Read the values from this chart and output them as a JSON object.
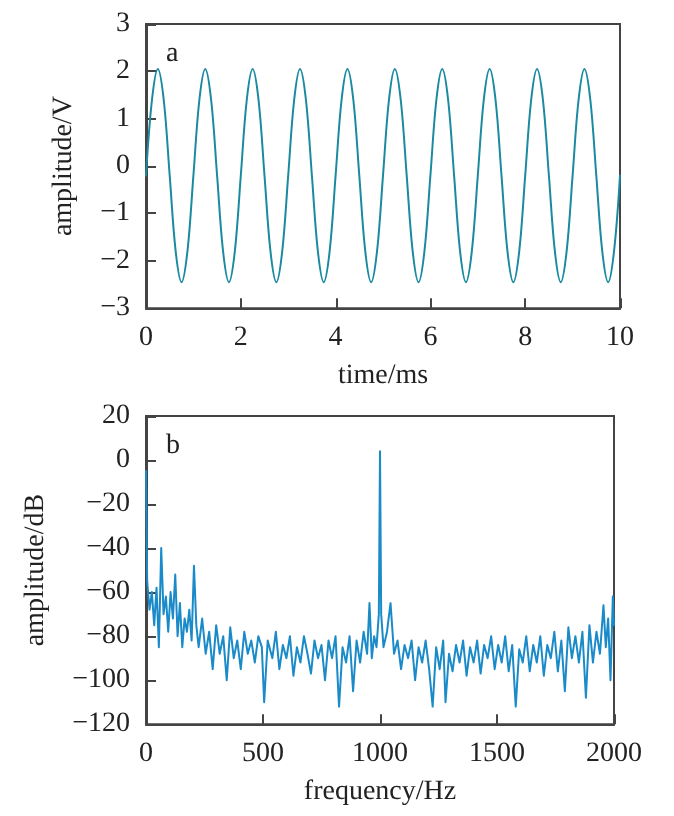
{
  "chart_data": [
    {
      "type": "line",
      "xlabel": "time/ms",
      "ylabel": "amplitude/V",
      "annotations": [
        "a"
      ],
      "color": "#1a8aa0",
      "xlim": [
        0,
        10
      ],
      "xticks": [
        0,
        2,
        4,
        6,
        8,
        10
      ],
      "ylim": [
        -3,
        3
      ],
      "yticks": [
        -3,
        -2,
        -1,
        0,
        1,
        2,
        3
      ],
      "grid": false,
      "x": [
        0,
        0.125,
        0.25,
        0.375,
        0.5,
        0.625,
        0.75,
        0.875,
        1,
        1.125,
        1.25,
        1.375,
        1.5,
        1.625,
        1.75,
        1.875,
        2,
        2.125,
        2.25,
        2.375,
        2.5,
        2.625,
        2.75,
        2.875,
        3,
        3.125,
        3.25,
        3.375,
        3.5,
        3.625,
        3.75,
        3.875,
        4,
        4.125,
        4.25,
        4.375,
        4.5,
        4.625,
        4.75,
        4.875,
        5,
        5.125,
        5.25,
        5.375,
        5.5,
        5.625,
        5.75,
        5.875,
        6,
        6.125,
        6.25,
        6.375,
        6.5,
        6.625,
        6.75,
        6.875,
        7,
        7.125,
        7.25,
        7.375,
        7.5,
        7.625,
        7.75,
        7.875,
        8,
        8.125,
        8.25,
        8.375,
        8.5,
        8.625,
        8.75,
        8.875,
        9,
        9.125,
        9.25,
        9.375,
        9.5,
        9.625,
        9.75,
        9.875,
        10
      ],
      "values": [
        -0.2,
        1.39,
        2.05,
        1.39,
        -0.2,
        -1.79,
        -2.45,
        -1.79,
        -0.2,
        1.39,
        2.05,
        1.39,
        -0.2,
        -1.79,
        -2.45,
        -1.79,
        -0.2,
        1.39,
        2.05,
        1.39,
        -0.2,
        -1.79,
        -2.45,
        -1.79,
        -0.2,
        1.39,
        2.05,
        1.39,
        -0.2,
        -1.79,
        -2.45,
        -1.79,
        -0.2,
        1.39,
        2.05,
        1.39,
        -0.2,
        -1.79,
        -2.45,
        -1.79,
        -0.2,
        1.39,
        2.05,
        1.39,
        -0.2,
        -1.79,
        -2.45,
        -1.79,
        -0.2,
        1.39,
        2.05,
        1.39,
        -0.2,
        -1.79,
        -2.45,
        -1.79,
        -0.2,
        1.39,
        2.05,
        1.39,
        -0.2,
        -1.79,
        -2.45,
        -1.79,
        -0.2,
        1.39,
        2.05,
        1.39,
        -0.2,
        -1.79,
        -2.45,
        -1.79,
        -0.2,
        1.39,
        2.05,
        1.39,
        -0.2,
        -1.79,
        -2.45,
        -1.79,
        -0.2
      ]
    },
    {
      "type": "line",
      "xlabel": "frequency/Hz",
      "ylabel": "amplitude/dB",
      "annotations": [
        "b"
      ],
      "color": "#1a8ac8",
      "xlim": [
        0,
        2000
      ],
      "xticks": [
        0,
        500,
        1000,
        1500,
        2000
      ],
      "ylim": [
        -120,
        20
      ],
      "yticks": [
        -120,
        -100,
        -80,
        -60,
        -40,
        -20,
        0,
        20
      ],
      "grid": false,
      "x": [
        0,
        5,
        15,
        25,
        35,
        45,
        55,
        65,
        75,
        85,
        95,
        105,
        115,
        125,
        135,
        145,
        155,
        165,
        175,
        185,
        195,
        205,
        215,
        225,
        240,
        255,
        270,
        285,
        300,
        315,
        330,
        345,
        360,
        375,
        390,
        405,
        420,
        435,
        450,
        465,
        480,
        495,
        505,
        520,
        540,
        555,
        570,
        585,
        600,
        615,
        630,
        645,
        660,
        675,
        690,
        705,
        720,
        735,
        750,
        765,
        780,
        795,
        810,
        825,
        840,
        855,
        870,
        885,
        900,
        915,
        930,
        945,
        955,
        965,
        975,
        985,
        995,
        1000,
        1005,
        1015,
        1030,
        1045,
        1060,
        1075,
        1090,
        1105,
        1120,
        1135,
        1150,
        1165,
        1180,
        1195,
        1210,
        1225,
        1240,
        1255,
        1270,
        1280,
        1295,
        1310,
        1325,
        1340,
        1355,
        1370,
        1385,
        1400,
        1415,
        1430,
        1445,
        1460,
        1475,
        1490,
        1505,
        1520,
        1535,
        1550,
        1565,
        1580,
        1595,
        1610,
        1625,
        1640,
        1655,
        1670,
        1685,
        1700,
        1715,
        1730,
        1745,
        1760,
        1775,
        1790,
        1805,
        1820,
        1835,
        1850,
        1865,
        1880,
        1895,
        1910,
        1925,
        1940,
        1955,
        1965,
        1975,
        1985,
        1995,
        2000
      ],
      "values": [
        -5,
        -55,
        -68,
        -60,
        -75,
        -58,
        -85,
        -40,
        -70,
        -62,
        -78,
        -60,
        -72,
        -52,
        -80,
        -65,
        -85,
        -72,
        -78,
        -68,
        -82,
        -48,
        -75,
        -85,
        -72,
        -88,
        -78,
        -95,
        -75,
        -88,
        -80,
        -100,
        -76,
        -90,
        -82,
        -95,
        -78,
        -88,
        -82,
        -92,
        -80,
        -85,
        -110,
        -82,
        -90,
        -78,
        -95,
        -84,
        -90,
        -80,
        -98,
        -85,
        -92,
        -80,
        -88,
        -97,
        -82,
        -90,
        -84,
        -100,
        -82,
        -90,
        -80,
        -112,
        -85,
        -92,
        -80,
        -105,
        -82,
        -92,
        -78,
        -88,
        -65,
        -90,
        -80,
        -85,
        -70,
        4,
        -70,
        -85,
        -78,
        -65,
        -88,
        -82,
        -95,
        -84,
        -90,
        -82,
        -100,
        -85,
        -92,
        -82,
        -95,
        -112,
        -85,
        -95,
        -82,
        -110,
        -88,
        -96,
        -84,
        -92,
        -82,
        -98,
        -85,
        -92,
        -82,
        -97,
        -84,
        -90,
        -80,
        -95,
        -84,
        -92,
        -80,
        -96,
        -84,
        -112,
        -86,
        -92,
        -80,
        -96,
        -84,
        -92,
        -80,
        -98,
        -84,
        -90,
        -78,
        -96,
        -82,
        -105,
        -76,
        -90,
        -80,
        -92,
        -78,
        -108,
        -75,
        -92,
        -78,
        -88,
        -66,
        -85,
        -72,
        -100,
        -62,
        -75
      ]
    }
  ]
}
